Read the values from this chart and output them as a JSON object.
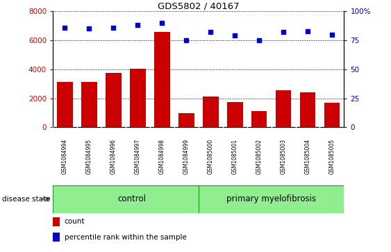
{
  "title": "GDS5802 / 40167",
  "samples": [
    "GSM1084994",
    "GSM1084995",
    "GSM1084996",
    "GSM1084997",
    "GSM1084998",
    "GSM1084999",
    "GSM1085000",
    "GSM1085001",
    "GSM1085002",
    "GSM1085003",
    "GSM1085004",
    "GSM1085005"
  ],
  "counts": [
    3150,
    3150,
    3750,
    4050,
    6600,
    950,
    2100,
    1750,
    1100,
    2550,
    2400,
    1700
  ],
  "percentiles": [
    86,
    85,
    86,
    88,
    90,
    75,
    82,
    79,
    75,
    82,
    83,
    80
  ],
  "n_control": 6,
  "n_pmf": 6,
  "bar_color": "#cc0000",
  "dot_color": "#0000cc",
  "ylim_left": [
    0,
    8000
  ],
  "ylim_right": [
    0,
    100
  ],
  "yticks_left": [
    0,
    2000,
    4000,
    6000,
    8000
  ],
  "yticks_right": [
    0,
    25,
    50,
    75,
    100
  ],
  "disease_state_label": "disease state",
  "group_labels": [
    "control",
    "primary myelofibrosis"
  ],
  "legend_count": "count",
  "legend_percentile": "percentile rank within the sample",
  "plot_bg": "#ffffff",
  "label_bg": "#d0d0d0",
  "green_color": "#90ee90",
  "green_border": "#00aa00"
}
